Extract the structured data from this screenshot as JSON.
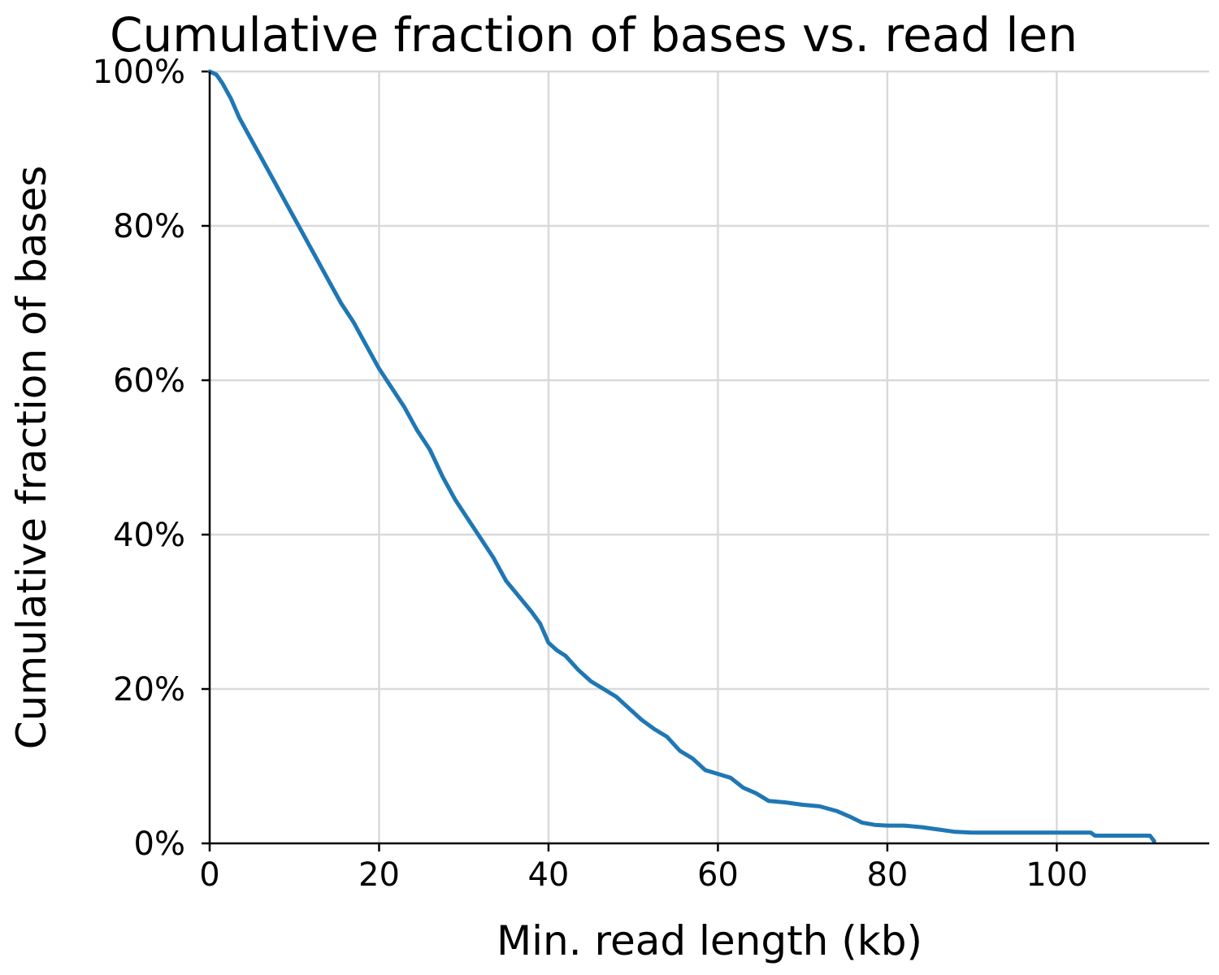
{
  "chart_data": {
    "type": "line",
    "title": "Cumulative fraction of bases vs. read len",
    "xlabel": "Min. read length (kb)",
    "ylabel": "Cumulative fraction of bases",
    "xlim": [
      0,
      118
    ],
    "ylim": [
      0,
      100
    ],
    "x_ticks": [
      0,
      20,
      40,
      60,
      80,
      100
    ],
    "x_tick_labels": [
      "0",
      "20",
      "40",
      "60",
      "80",
      "100"
    ],
    "y_ticks": [
      0,
      20,
      40,
      60,
      80,
      100
    ],
    "y_tick_labels": [
      "0%",
      "20%",
      "40%",
      "60%",
      "80%",
      "100%"
    ],
    "grid": true,
    "series": [
      {
        "color": "#1f77b4",
        "x": [
          0,
          0.8,
          1.5,
          2.5,
          3.5,
          5,
          6.5,
          8,
          9.5,
          11,
          12.5,
          14,
          15.5,
          17,
          18.5,
          20,
          21.5,
          23,
          24.5,
          26,
          27.5,
          29,
          30.5,
          32,
          33.5,
          35,
          36.5,
          38,
          39,
          40,
          41,
          42,
          43.5,
          45,
          46.5,
          48,
          49.5,
          51,
          52.5,
          54,
          55.5,
          57,
          58.5,
          60,
          61.5,
          63,
          64.5,
          66,
          68,
          70,
          72,
          74,
          75.5,
          77,
          78.5,
          80,
          82,
          84,
          86,
          88,
          90,
          95,
          100,
          104,
          104.5,
          108,
          111,
          111.5
        ],
        "y": [
          100,
          99.6,
          98.5,
          96.5,
          94,
          91,
          88,
          85,
          82,
          79,
          76,
          73,
          70,
          67.5,
          64.5,
          61.5,
          59,
          56.5,
          53.5,
          51,
          47.5,
          44.5,
          42,
          39.5,
          37,
          34,
          32,
          30,
          28.5,
          26,
          25,
          24.3,
          22.5,
          21,
          20,
          19,
          17.5,
          16,
          14.8,
          13.8,
          12,
          11,
          9.5,
          9,
          8.5,
          7.2,
          6.5,
          5.5,
          5.3,
          5,
          4.8,
          4.2,
          3.5,
          2.7,
          2.4,
          2.3,
          2.3,
          2.1,
          1.8,
          1.5,
          1.4,
          1.4,
          1.4,
          1.4,
          1.0,
          1.0,
          1.0,
          0.3
        ]
      }
    ]
  }
}
